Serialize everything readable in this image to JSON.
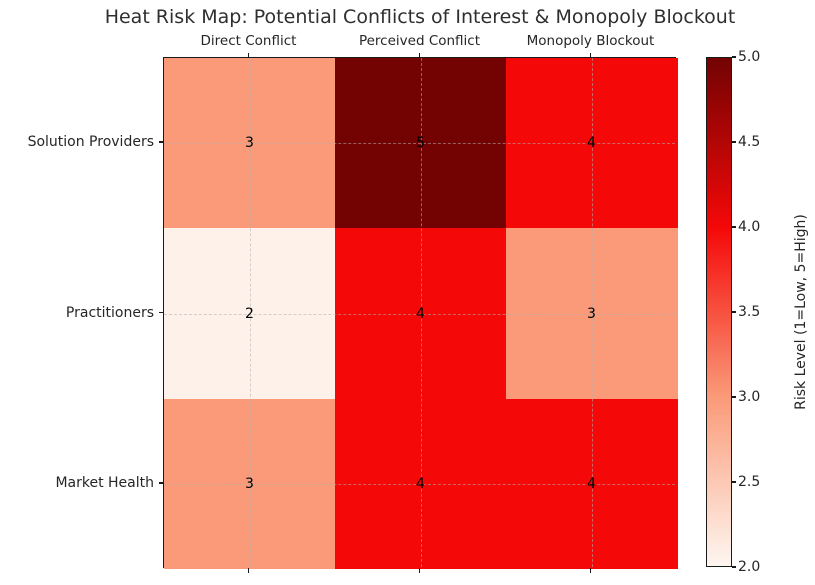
{
  "chart_data": {
    "type": "heatmap",
    "title": "Heat Risk Map: Potential Conflicts of Interest & Monopoly Blockout",
    "columns": [
      "Direct Conflict",
      "Perceived Conflict",
      "Monopoly Blockout"
    ],
    "rows": [
      "Solution Providers",
      "Practitioners",
      "Market Health"
    ],
    "values": [
      [
        3,
        5,
        4
      ],
      [
        2,
        4,
        3
      ],
      [
        3,
        4,
        4
      ]
    ],
    "value_colors": {
      "2": "#fdf1ea",
      "3": "#fa9a78",
      "4": "#f40808",
      "5": "#730303"
    },
    "grid": "dashed, at cell centers",
    "colorbar": {
      "label": "Risk Level (1=Low, 5=High)",
      "min": 2.0,
      "max": 5.0,
      "ticks": [
        "5.0",
        "4.5",
        "4.0",
        "3.5",
        "3.0",
        "2.5",
        "2.0"
      ],
      "gradient_bottom_to_top": [
        "#fef6f0",
        "#fa9a78",
        "#f40808",
        "#730303"
      ],
      "position": "right"
    }
  }
}
